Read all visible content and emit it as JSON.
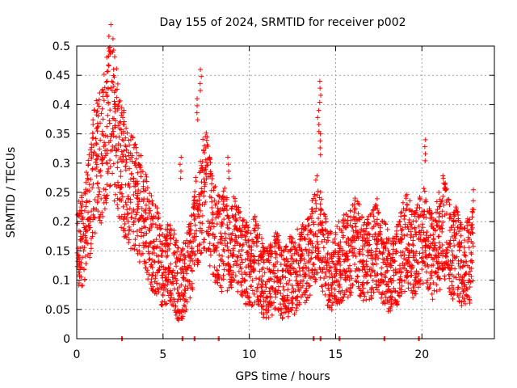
{
  "chart_data": {
    "type": "scatter",
    "title": "Day 155 of 2024, SRMTID for receiver p002",
    "xlabel": "GPS time / hours",
    "ylabel": "SRMTID / TECUs",
    "xlim": [
      0,
      24.2
    ],
    "ylim": [
      0,
      0.5
    ],
    "xticks": [
      "0",
      "5",
      "10",
      "15",
      "20"
    ],
    "yticks": [
      "0",
      "0.05",
      "0.1",
      "0.15",
      "0.2",
      "0.25",
      "0.3",
      "0.35",
      "0.4",
      "0.45",
      "0.5"
    ],
    "grid": true,
    "marker": "+",
    "color": "#ff0000",
    "series": [
      {
        "name": "SRMTID",
        "x": [
          0.0,
          0.2,
          0.4,
          0.6,
          0.8,
          1.0,
          1.2,
          1.4,
          1.6,
          1.8,
          2.0,
          2.2,
          2.4,
          2.6,
          2.8,
          3.0,
          3.2,
          3.4,
          3.6,
          3.8,
          4.0,
          4.2,
          4.4,
          4.6,
          4.8,
          5.0,
          5.2,
          5.4,
          5.6,
          5.8,
          6.0,
          6.2,
          6.4,
          6.6,
          6.8,
          7.0,
          7.2,
          7.4,
          7.6,
          7.8,
          8.0,
          8.2,
          8.4,
          8.6,
          8.8,
          9.0,
          9.2,
          9.4,
          9.6,
          9.8,
          10.0,
          10.2,
          10.4,
          10.6,
          10.8,
          11.0,
          11.2,
          11.4,
          11.6,
          11.8,
          12.0,
          12.2,
          12.4,
          12.6,
          12.8,
          13.0,
          13.2,
          13.4,
          13.6,
          13.8,
          14.0,
          14.2,
          14.4,
          14.6,
          14.8,
          15.0,
          15.2,
          15.4,
          15.6,
          15.8,
          16.0,
          16.2,
          16.4,
          16.6,
          16.8,
          17.0,
          17.2,
          17.4,
          17.6,
          17.8,
          18.0,
          18.2,
          18.4,
          18.6,
          18.8,
          19.0,
          19.2,
          19.4,
          19.6,
          19.8,
          20.0,
          20.2,
          20.4,
          20.6,
          20.8,
          21.0,
          21.2,
          21.4,
          21.6,
          21.8,
          22.0,
          22.2,
          22.4,
          22.6,
          22.8,
          23.0
        ],
        "y": [
          0.15,
          0.16,
          0.18,
          0.2,
          0.24,
          0.28,
          0.32,
          0.3,
          0.34,
          0.38,
          0.4,
          0.36,
          0.33,
          0.3,
          0.28,
          0.26,
          0.25,
          0.24,
          0.23,
          0.22,
          0.2,
          0.18,
          0.16,
          0.15,
          0.14,
          0.12,
          0.13,
          0.14,
          0.12,
          0.1,
          0.09,
          0.1,
          0.12,
          0.14,
          0.18,
          0.2,
          0.22,
          0.26,
          0.24,
          0.2,
          0.18,
          0.17,
          0.16,
          0.18,
          0.15,
          0.16,
          0.17,
          0.15,
          0.14,
          0.13,
          0.12,
          0.13,
          0.14,
          0.12,
          0.1,
          0.09,
          0.1,
          0.11,
          0.12,
          0.1,
          0.09,
          0.1,
          0.11,
          0.1,
          0.12,
          0.13,
          0.12,
          0.14,
          0.16,
          0.18,
          0.2,
          0.16,
          0.14,
          0.12,
          0.11,
          0.12,
          0.13,
          0.14,
          0.15,
          0.14,
          0.16,
          0.17,
          0.15,
          0.14,
          0.13,
          0.14,
          0.15,
          0.16,
          0.14,
          0.13,
          0.12,
          0.1,
          0.11,
          0.13,
          0.15,
          0.16,
          0.17,
          0.15,
          0.14,
          0.16,
          0.18,
          0.17,
          0.15,
          0.14,
          0.16,
          0.15,
          0.2,
          0.18,
          0.16,
          0.14,
          0.15,
          0.13,
          0.12,
          0.14,
          0.13,
          0.18
        ]
      }
    ],
    "spikes": [
      {
        "x": 1.8,
        "y": 0.44
      },
      {
        "x": 2.2,
        "y": 0.4
      },
      {
        "x": 2.7,
        "y": 0.39
      },
      {
        "x": 6.0,
        "y": 0.31
      },
      {
        "x": 7.2,
        "y": 0.46
      },
      {
        "x": 7.0,
        "y": 0.41
      },
      {
        "x": 8.8,
        "y": 0.31
      },
      {
        "x": 14.1,
        "y": 0.44
      },
      {
        "x": 14.0,
        "y": 0.39
      },
      {
        "x": 14.1,
        "y": 0.35
      },
      {
        "x": 20.2,
        "y": 0.34
      },
      {
        "x": 21.0,
        "y": 0.25
      }
    ],
    "zero_points_x": [
      2.6,
      6.1,
      6.8,
      8.2,
      13.7,
      14.1,
      15.2,
      17.8,
      19.8
    ]
  }
}
